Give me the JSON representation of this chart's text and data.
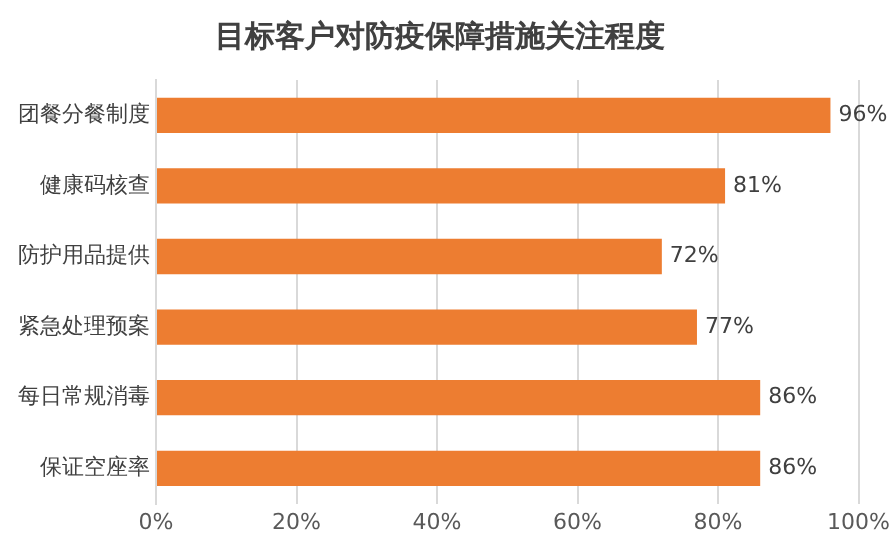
{
  "chart_data": {
    "type": "bar",
    "orientation": "horizontal",
    "title": "目标客户对防疫保障措施关注程度",
    "categories": [
      "团餐分餐制度",
      "健康码核查",
      "防护用品提供",
      "紧急处理预案",
      "每日常规消毒",
      "保证空座率"
    ],
    "values": [
      96,
      81,
      72,
      77,
      86,
      86
    ],
    "value_labels": [
      "96%",
      "81%",
      "72%",
      "77%",
      "86%",
      "86%"
    ],
    "color": "#ed7d31",
    "xlim": [
      0,
      100
    ],
    "xticks": [
      {
        "value": 0,
        "label": "0%"
      },
      {
        "value": 20,
        "label": "20%"
      },
      {
        "value": 40,
        "label": "40%"
      },
      {
        "value": 60,
        "label": "60%"
      },
      {
        "value": 80,
        "label": "80%"
      },
      {
        "value": 100,
        "label": "100%"
      }
    ],
    "grid": "x"
  }
}
